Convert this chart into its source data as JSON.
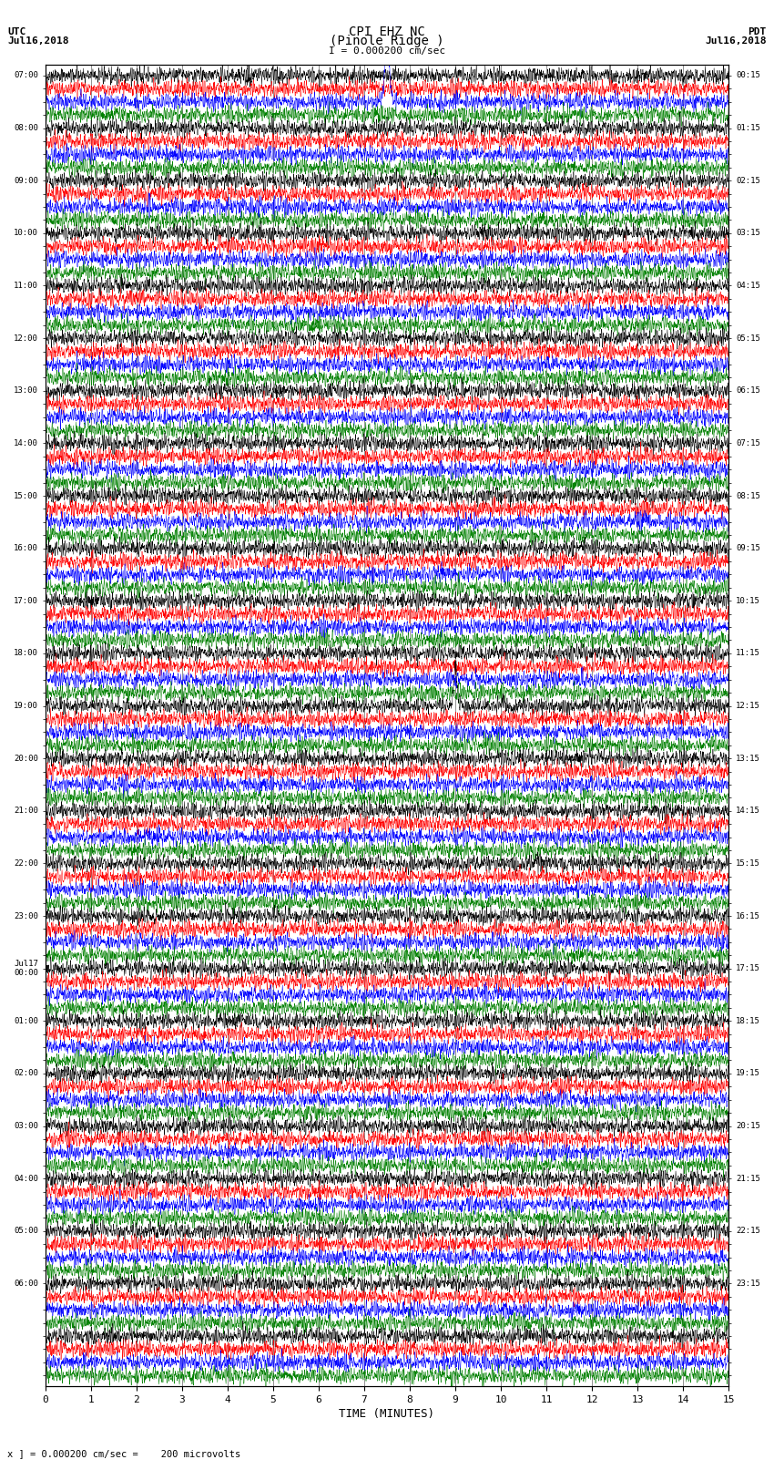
{
  "title_line1": "CPI EHZ NC",
  "title_line2": "(Pinole Ridge )",
  "scale_label": "I = 0.000200 cm/sec",
  "left_label_top": "UTC",
  "left_label_date": "Jul16,2018",
  "right_label_top": "PDT",
  "right_label_date": "Jul16,2018",
  "bottom_label": "TIME (MINUTES)",
  "bottom_note": "x ] = 0.000200 cm/sec =    200 microvolts",
  "xlabel_ticks": [
    0,
    1,
    2,
    3,
    4,
    5,
    6,
    7,
    8,
    9,
    10,
    11,
    12,
    13,
    14,
    15
  ],
  "utc_times": [
    "07:00",
    "",
    "",
    "",
    "08:00",
    "",
    "",
    "",
    "09:00",
    "",
    "",
    "",
    "10:00",
    "",
    "",
    "",
    "11:00",
    "",
    "",
    "",
    "12:00",
    "",
    "",
    "",
    "13:00",
    "",
    "",
    "",
    "14:00",
    "",
    "",
    "",
    "15:00",
    "",
    "",
    "",
    "16:00",
    "",
    "",
    "",
    "17:00",
    "",
    "",
    "",
    "18:00",
    "",
    "",
    "",
    "19:00",
    "",
    "",
    "",
    "20:00",
    "",
    "",
    "",
    "21:00",
    "",
    "",
    "",
    "22:00",
    "",
    "",
    "",
    "23:00",
    "",
    "",
    "",
    "Jul17\n00:00",
    "",
    "",
    "",
    "01:00",
    "",
    "",
    "",
    "02:00",
    "",
    "",
    "",
    "03:00",
    "",
    "",
    "",
    "04:00",
    "",
    "",
    "",
    "05:00",
    "",
    "",
    "",
    "06:00",
    "",
    ""
  ],
  "pdt_times": [
    "00:15",
    "",
    "",
    "",
    "01:15",
    "",
    "",
    "",
    "02:15",
    "",
    "",
    "",
    "03:15",
    "",
    "",
    "",
    "04:15",
    "",
    "",
    "",
    "05:15",
    "",
    "",
    "",
    "06:15",
    "",
    "",
    "",
    "07:15",
    "",
    "",
    "",
    "08:15",
    "",
    "",
    "",
    "09:15",
    "",
    "",
    "",
    "10:15",
    "",
    "",
    "",
    "11:15",
    "",
    "",
    "",
    "12:15",
    "",
    "",
    "",
    "13:15",
    "",
    "",
    "",
    "14:15",
    "",
    "",
    "",
    "15:15",
    "",
    "",
    "",
    "16:15",
    "",
    "",
    "",
    "17:15",
    "",
    "",
    "",
    "18:15",
    "",
    "",
    "",
    "19:15",
    "",
    "",
    "",
    "20:15",
    "",
    "",
    "",
    "21:15",
    "",
    "",
    "",
    "22:15",
    "",
    "",
    "",
    "23:15",
    "",
    ""
  ],
  "colors": [
    "black",
    "red",
    "blue",
    "green"
  ],
  "n_rows": 100,
  "n_cols": 4500,
  "bg_color": "white",
  "amplitude": 0.28,
  "noise_seed": 42,
  "fig_width": 8.5,
  "fig_height": 16.13,
  "dpi": 100
}
